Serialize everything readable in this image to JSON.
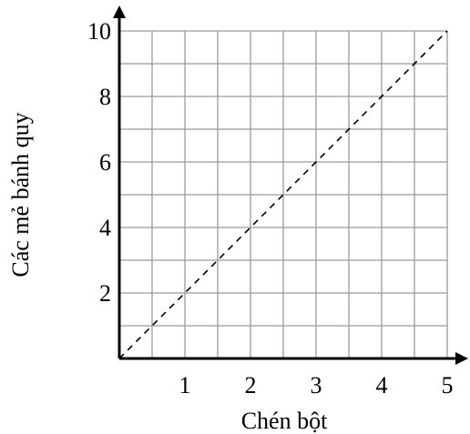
{
  "chart_data": {
    "type": "line",
    "title": "",
    "xlabel": "Chén bột",
    "ylabel": "Các mẻ bánh quy",
    "xlim": [
      0,
      5
    ],
    "ylim": [
      0,
      10
    ],
    "x_ticks": [
      "1",
      "2",
      "3",
      "4",
      "5"
    ],
    "x_tick_values": [
      1,
      2,
      3,
      4,
      5
    ],
    "y_ticks": [
      "2",
      "4",
      "6",
      "8",
      "10"
    ],
    "y_tick_values": [
      2,
      4,
      6,
      8,
      10
    ],
    "grid": true,
    "grid_x_step": 0.5,
    "grid_y_step": 1,
    "series": [
      {
        "x": [
          0,
          5
        ],
        "y": [
          0,
          10
        ],
        "style": "dashed",
        "color": "#000000"
      }
    ]
  }
}
